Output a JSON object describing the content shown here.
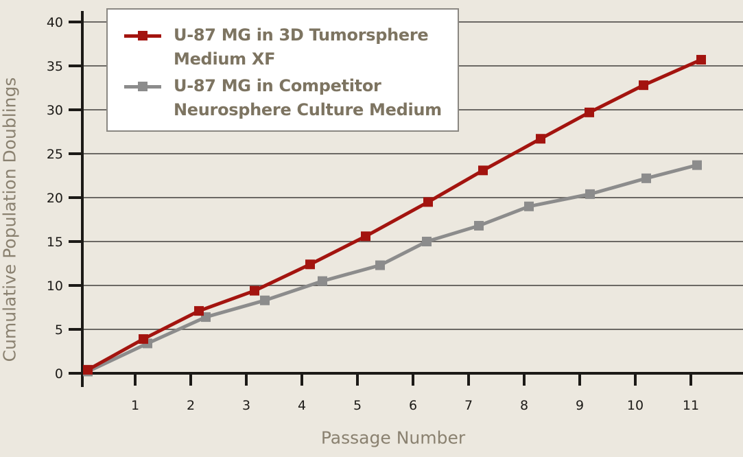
{
  "chart_data": {
    "type": "line",
    "title": "",
    "xlabel": "Passage Number",
    "ylabel": "Cumulative Population Doublings",
    "x": [
      0,
      1,
      2,
      3,
      4,
      5,
      6,
      7,
      8,
      9,
      10,
      11
    ],
    "x_tick_labels": [
      "1",
      "2",
      "3",
      "4",
      "5",
      "6",
      "7",
      "8",
      "9",
      "10",
      "11"
    ],
    "y_tick_labels": [
      "0",
      "5",
      "10",
      "15",
      "20",
      "25",
      "30",
      "35",
      "40"
    ],
    "ylim": [
      0,
      40
    ],
    "xlim": [
      0,
      12
    ],
    "grid": "horizontal",
    "legend_position": "upper-left",
    "series": [
      {
        "name": "U-87 MG in 3D Tumorsphere Medium XF",
        "color": "#a3140f",
        "marker": "square",
        "values": [
          0.4,
          3.9,
          7.1,
          9.4,
          12.4,
          15.6,
          19.5,
          23.1,
          26.7,
          29.7,
          32.8,
          35.7
        ]
      },
      {
        "name": "U-87 MG in Competitor Neurosphere Culture Medium",
        "color": "#8c8c8c",
        "marker": "square",
        "values": [
          0.2,
          3.4,
          6.4,
          8.3,
          10.5,
          12.3,
          15.0,
          16.8,
          19.0,
          20.4,
          22.2,
          23.7
        ]
      }
    ]
  },
  "legend": {
    "items": [
      {
        "line1": "U-87 MG in 3D Tumorsphere",
        "line2": "Medium XF",
        "color": "#a3140f"
      },
      {
        "line1": "U-87 MG in Competitor",
        "line2": "Neurosphere Culture Medium",
        "color": "#8c8c8c"
      }
    ]
  },
  "colors": {
    "background": "#ece8df",
    "axis": "#1c1a17",
    "grid": "#6b6864",
    "label": "#8a8170",
    "legend_text": "#7d7461"
  }
}
